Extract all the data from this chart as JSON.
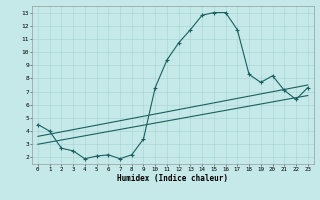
{
  "xlabel": "Humidex (Indice chaleur)",
  "xlim": [
    -0.5,
    23.5
  ],
  "ylim": [
    1.5,
    13.5
  ],
  "xticks": [
    0,
    1,
    2,
    3,
    4,
    5,
    6,
    7,
    8,
    9,
    10,
    11,
    12,
    13,
    14,
    15,
    16,
    17,
    18,
    19,
    20,
    21,
    22,
    23
  ],
  "yticks": [
    2,
    3,
    4,
    5,
    6,
    7,
    8,
    9,
    10,
    11,
    12,
    13
  ],
  "background_color": "#c5e8e8",
  "grid_color": "#a8d4d4",
  "line_color": "#1a6060",
  "line1_x": [
    0,
    1,
    2,
    3,
    4,
    5,
    6,
    7,
    8,
    9,
    10,
    11,
    12,
    13,
    14,
    15,
    16,
    17,
    18,
    19,
    20,
    21,
    22,
    23
  ],
  "line1_y": [
    4.5,
    4.0,
    2.7,
    2.5,
    1.9,
    2.1,
    2.2,
    1.9,
    2.2,
    3.4,
    7.3,
    9.4,
    10.7,
    11.7,
    12.8,
    13.0,
    13.0,
    11.7,
    8.3,
    7.7,
    8.2,
    7.1,
    6.4,
    7.3
  ],
  "line2_x": [
    0,
    23
  ],
  "line2_y": [
    3.6,
    7.5
  ],
  "line3_x": [
    0,
    23
  ],
  "line3_y": [
    3.0,
    6.7
  ]
}
